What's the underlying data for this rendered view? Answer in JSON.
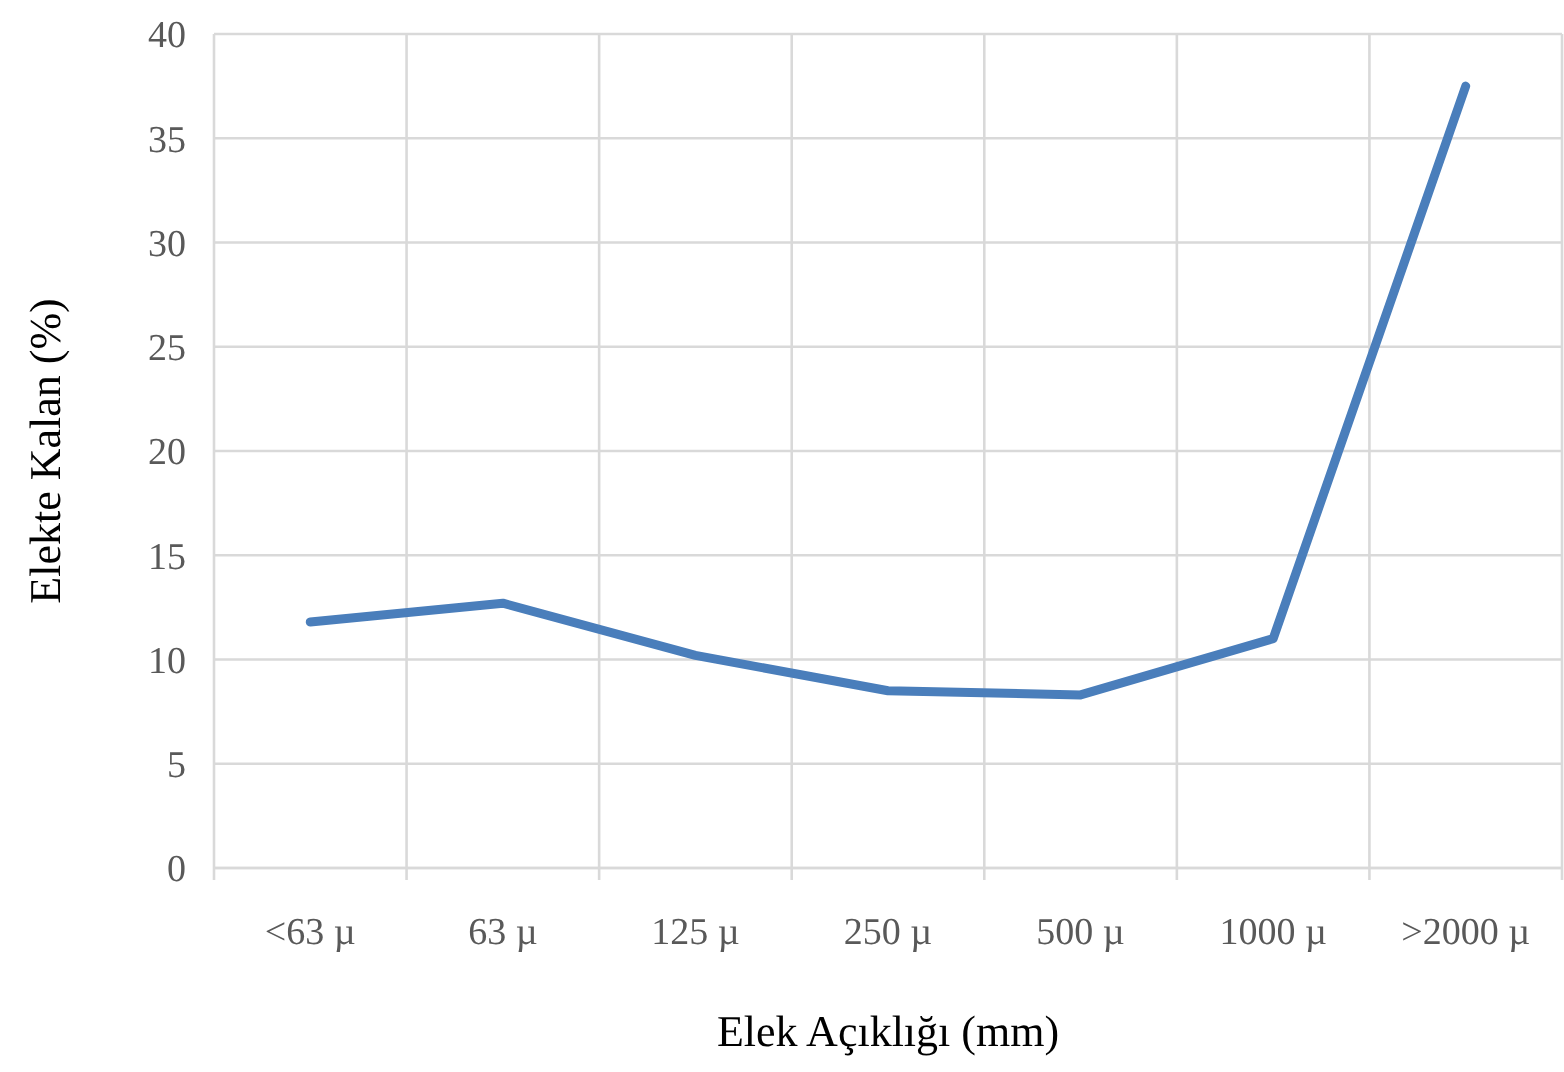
{
  "chart_data": {
    "type": "line",
    "xlabel": "Elek Açıklığı (mm)",
    "ylabel": "Elekte Kalan (%)",
    "categories": [
      "<63 µ",
      "63 µ",
      "125 µ",
      "250 µ",
      "500 µ",
      "1000 µ",
      ">2000 µ"
    ],
    "series": [
      {
        "color": "#4a7ebb",
        "values": [
          11.8,
          12.7,
          10.2,
          8.5,
          8.3,
          11.0,
          37.5
        ]
      }
    ],
    "ylim": [
      0,
      40
    ],
    "yticks": [
      0,
      5,
      10,
      15,
      20,
      25,
      30,
      35,
      40
    ],
    "grid": true,
    "marker": "none",
    "line_style": "solid"
  }
}
